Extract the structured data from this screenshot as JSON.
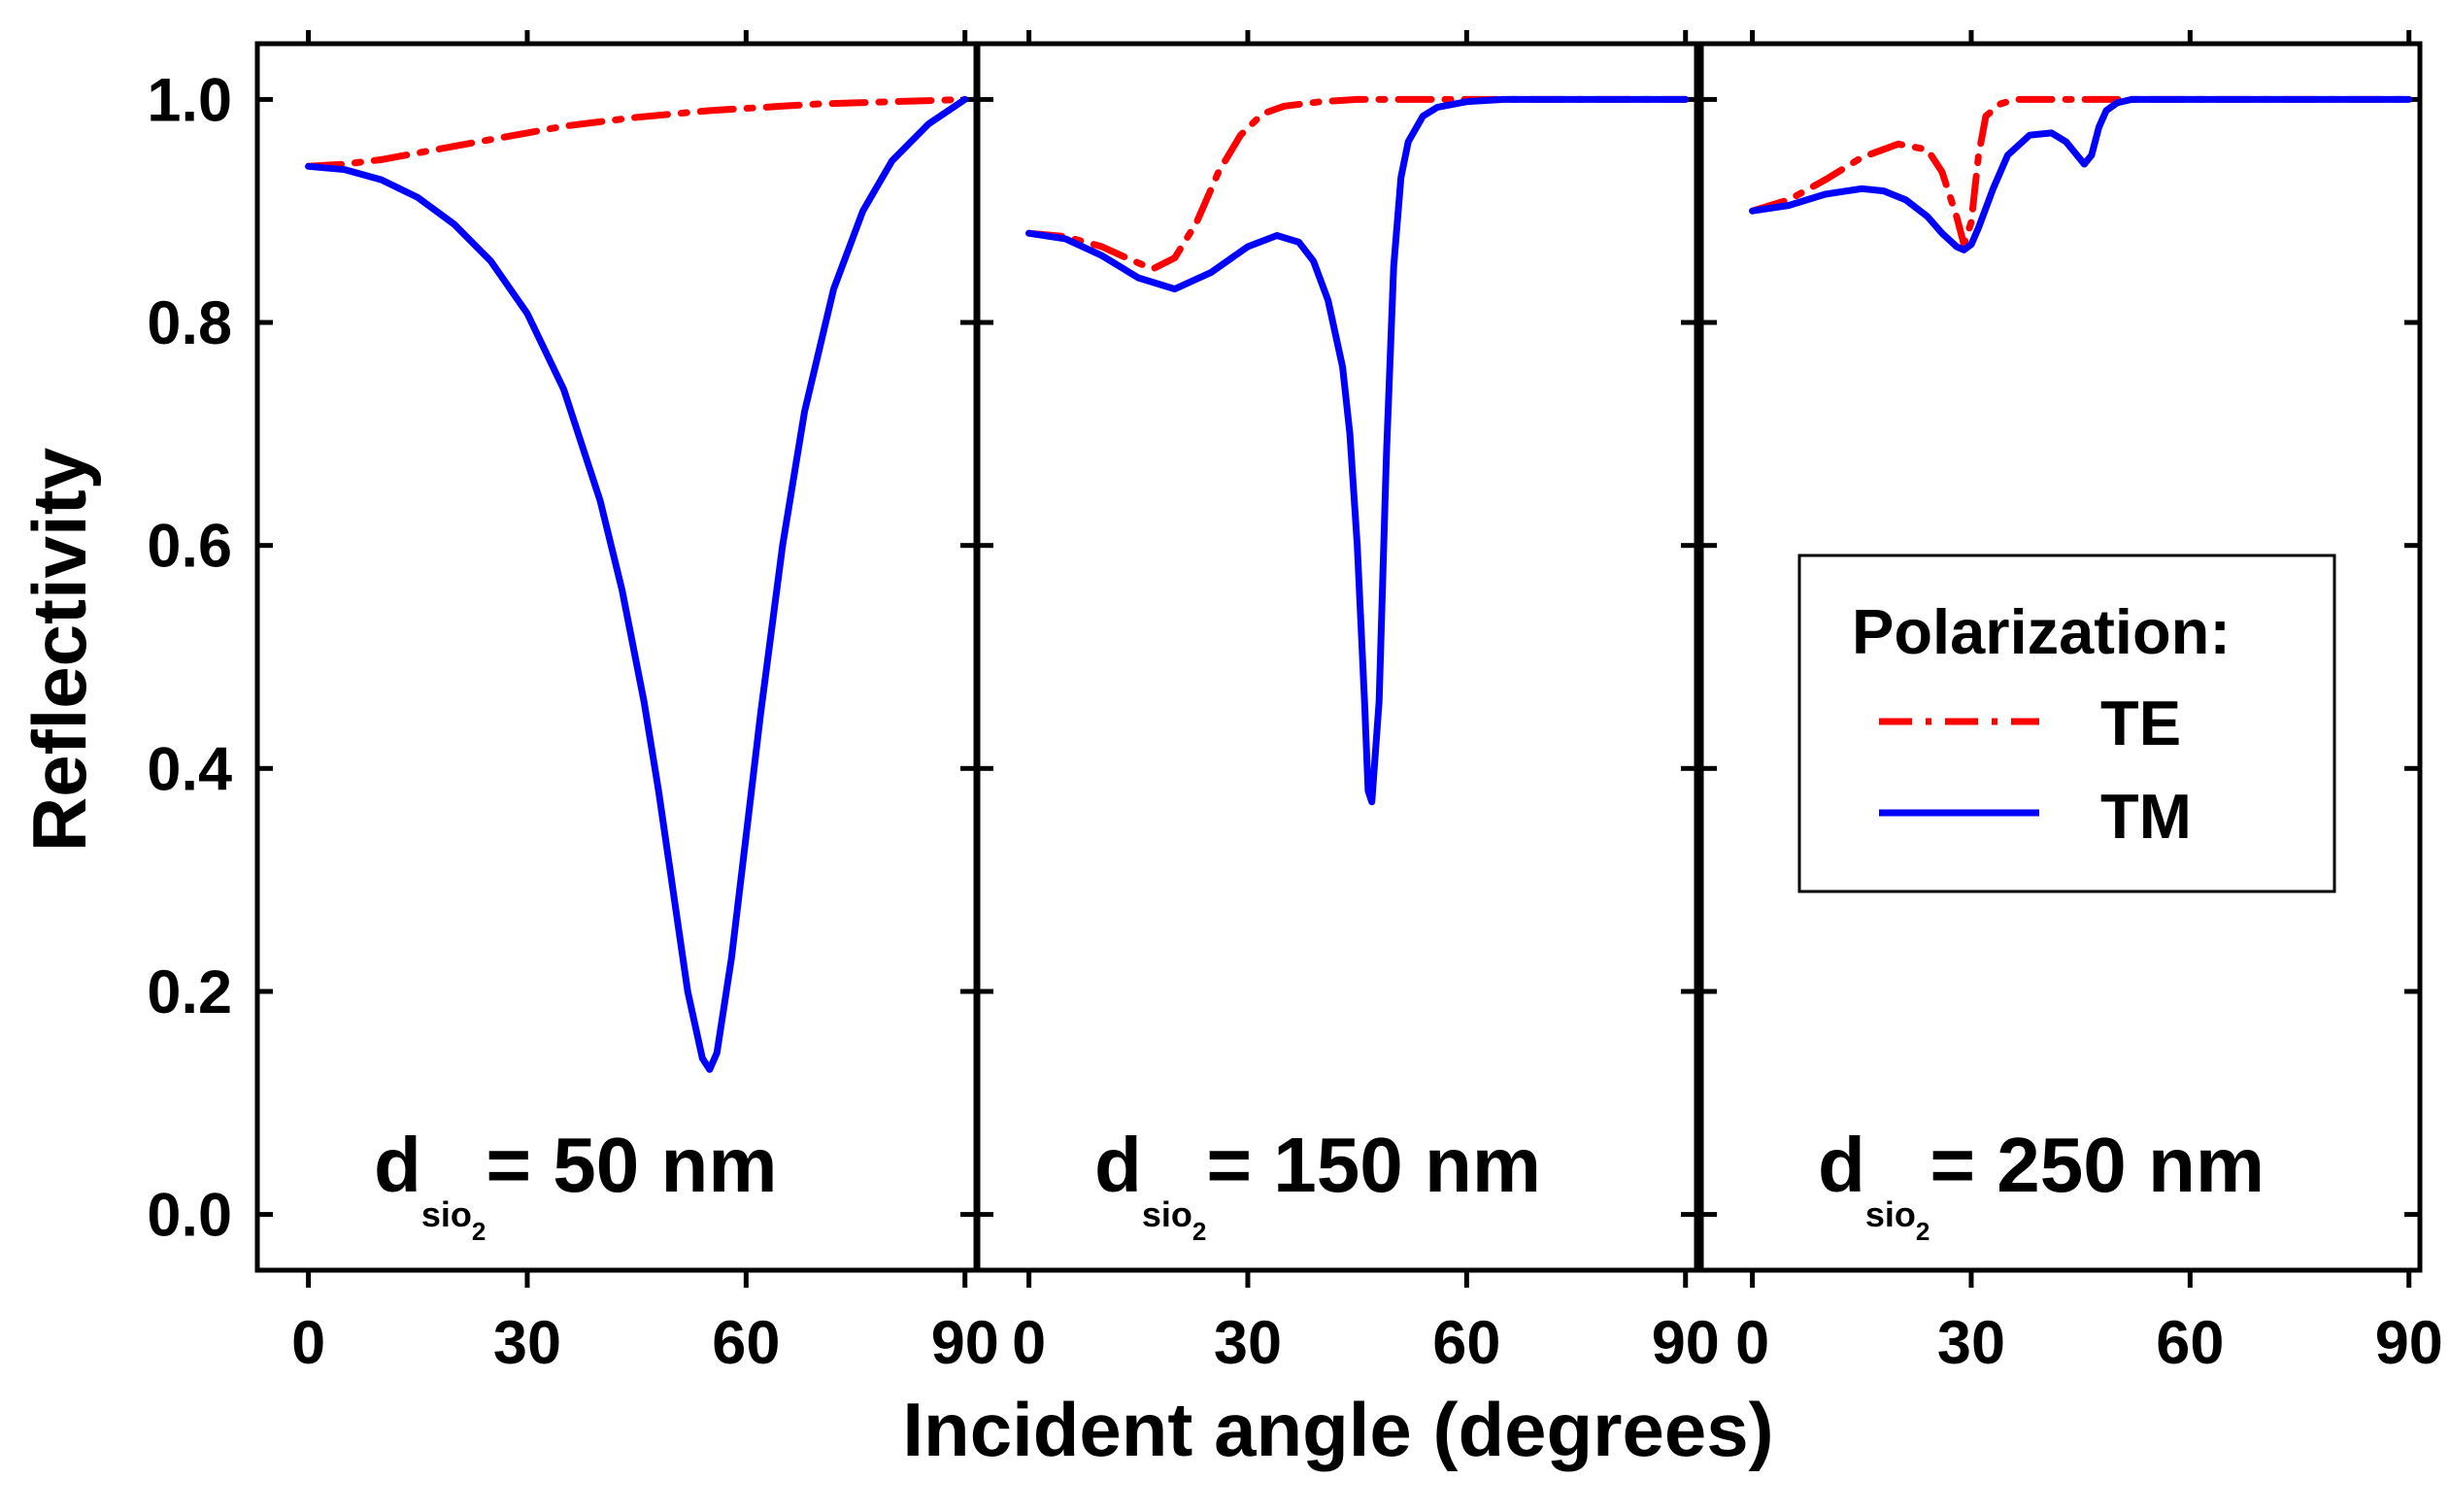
{
  "chart_data": {
    "type": "line",
    "ylabel": "Reflectivity",
    "xlabel": "Incident angle (degrees)",
    "ylim": [
      -0.05,
      1.05
    ],
    "xlim": [
      -7,
      91.5
    ],
    "x_ticks": [
      0,
      30,
      60,
      90
    ],
    "x_tick_labels": [
      "0",
      "30",
      "60",
      "90"
    ],
    "y_ticks": [
      0.0,
      0.2,
      0.4,
      0.6,
      0.8,
      1.0
    ],
    "y_tick_labels": [
      "0.0",
      "0.2",
      "0.4",
      "0.6",
      "0.8",
      "1.0"
    ],
    "legend": {
      "title": "Polarization:",
      "placement": "right-center",
      "entries": [
        {
          "label": "TE",
          "color": "#ff0000",
          "style": "dash-dot"
        },
        {
          "label": "TM",
          "color": "#0000ff",
          "style": "solid"
        }
      ]
    },
    "panels": [
      {
        "label_d": "d",
        "label_sub": "sio",
        "label_subsub": "2",
        "label_value": "= 50 nm",
        "series": [
          {
            "name": "TE",
            "color": "#ff0000",
            "x": [
              0,
              5,
              10,
              15,
              20,
              25,
              30,
              35,
              40,
              45,
              50,
              55,
              60,
              65,
              70,
              75,
              80,
              85,
              90
            ],
            "y": [
              0.94,
              0.942,
              0.946,
              0.952,
              0.958,
              0.964,
              0.97,
              0.976,
              0.98,
              0.984,
              0.987,
              0.99,
              0.992,
              0.994,
              0.996,
              0.997,
              0.998,
              0.999,
              1.0
            ]
          },
          {
            "name": "TM",
            "color": "#0000ff",
            "x": [
              0,
              5,
              10,
              15,
              20,
              25,
              30,
              35,
              40,
              43,
              46,
              48,
              50,
              52,
              54,
              55,
              56,
              58,
              60,
              62,
              65,
              68,
              72,
              76,
              80,
              85,
              90
            ],
            "y": [
              0.94,
              0.937,
              0.928,
              0.912,
              0.888,
              0.855,
              0.808,
              0.74,
              0.64,
              0.56,
              0.46,
              0.38,
              0.29,
              0.2,
              0.14,
              0.13,
              0.145,
              0.23,
              0.34,
              0.45,
              0.6,
              0.72,
              0.83,
              0.9,
              0.945,
              0.978,
              1.0
            ]
          }
        ]
      },
      {
        "label_d": "d",
        "label_sub": "sio",
        "label_subsub": "2",
        "label_value": "= 150 nm",
        "series": [
          {
            "name": "TE",
            "color": "#ff0000",
            "x": [
              0,
              5,
              10,
              14,
              17,
              20,
              23,
              26,
              29,
              32,
              35,
              40,
              45,
              50,
              55,
              60,
              70,
              80,
              90
            ],
            "y": [
              0.88,
              0.877,
              0.868,
              0.856,
              0.848,
              0.858,
              0.89,
              0.935,
              0.968,
              0.987,
              0.994,
              0.998,
              1.0,
              1.0,
              1.0,
              1.0,
              1.0,
              1.0,
              1.0
            ]
          },
          {
            "name": "TM",
            "color": "#0000ff",
            "x": [
              0,
              5,
              10,
              15,
              20,
              25,
              30,
              34,
              37,
              39,
              41,
              43,
              44,
              45,
              46,
              46.5,
              47,
              48,
              49,
              50,
              51,
              52,
              54,
              56,
              60,
              65,
              70,
              80,
              90
            ],
            "y": [
              0.88,
              0.875,
              0.86,
              0.84,
              0.83,
              0.845,
              0.868,
              0.878,
              0.872,
              0.855,
              0.82,
              0.76,
              0.7,
              0.6,
              0.46,
              0.38,
              0.37,
              0.46,
              0.68,
              0.85,
              0.93,
              0.962,
              0.985,
              0.993,
              0.998,
              1.0,
              1.0,
              1.0,
              1.0
            ]
          }
        ]
      },
      {
        "label_d": "d",
        "label_sub": "sio",
        "label_subsub": "2",
        "label_value": "= 250 nm",
        "series": [
          {
            "name": "TE",
            "color": "#ff0000",
            "x": [
              0,
              5,
              10,
              15,
              20,
              24,
              26,
              28,
              29,
              30,
              31,
              32,
              34,
              36,
              40,
              45,
              50,
              60,
              70,
              80,
              90
            ],
            "y": [
              0.9,
              0.91,
              0.928,
              0.948,
              0.96,
              0.955,
              0.935,
              0.895,
              0.87,
              0.89,
              0.95,
              0.985,
              0.996,
              1.0,
              1.0,
              1.0,
              1.0,
              1.0,
              1.0,
              1.0,
              1.0
            ]
          },
          {
            "name": "TM",
            "color": "#0000ff",
            "x": [
              0,
              5,
              10,
              15,
              18,
              21,
              24,
              26,
              28,
              29,
              30,
              31,
              33,
              35,
              38,
              41,
              43,
              44.5,
              45.5,
              46.5,
              47.5,
              48.5,
              50,
              52,
              55,
              60,
              70,
              80,
              90
            ],
            "y": [
              0.9,
              0.905,
              0.915,
              0.92,
              0.918,
              0.91,
              0.895,
              0.88,
              0.868,
              0.865,
              0.87,
              0.885,
              0.92,
              0.95,
              0.968,
              0.97,
              0.962,
              0.95,
              0.942,
              0.95,
              0.975,
              0.99,
              0.997,
              1.0,
              1.0,
              1.0,
              1.0,
              1.0,
              1.0
            ]
          }
        ]
      }
    ]
  }
}
